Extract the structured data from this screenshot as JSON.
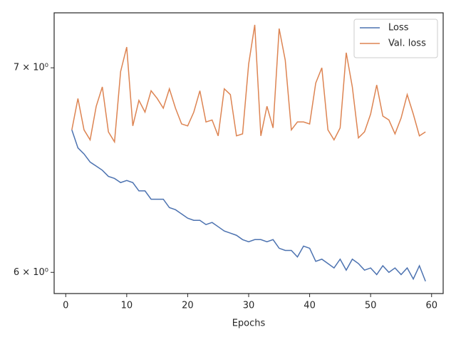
{
  "chart_data": {
    "type": "line",
    "xlabel": "Epochs",
    "x": [
      1,
      2,
      3,
      4,
      5,
      6,
      7,
      8,
      9,
      10,
      11,
      12,
      13,
      14,
      15,
      16,
      17,
      18,
      19,
      20,
      21,
      22,
      23,
      24,
      25,
      26,
      27,
      28,
      29,
      30,
      31,
      32,
      33,
      34,
      35,
      36,
      37,
      38,
      39,
      40,
      41,
      42,
      43,
      44,
      45,
      46,
      47,
      48,
      49,
      50,
      51,
      52,
      53,
      54,
      55,
      56,
      57,
      58,
      59
    ],
    "series": [
      {
        "name": "Loss",
        "color": "#4c72b0",
        "values": [
          6.68,
          6.59,
          6.56,
          6.52,
          6.5,
          6.48,
          6.45,
          6.44,
          6.42,
          6.43,
          6.42,
          6.38,
          6.38,
          6.34,
          6.34,
          6.34,
          6.3,
          6.29,
          6.27,
          6.25,
          6.24,
          6.24,
          6.22,
          6.23,
          6.21,
          6.19,
          6.18,
          6.17,
          6.15,
          6.14,
          6.15,
          6.15,
          6.14,
          6.15,
          6.11,
          6.1,
          6.1,
          6.07,
          6.12,
          6.11,
          6.05,
          6.06,
          6.04,
          6.02,
          6.06,
          6.01,
          6.06,
          6.04,
          6.01,
          6.02,
          5.99,
          6.03,
          6.0,
          6.02,
          5.99,
          6.02,
          5.97,
          6.03,
          5.96
        ]
      },
      {
        "name": "Val. loss",
        "color": "#dd8452",
        "values": [
          6.68,
          6.84,
          6.68,
          6.63,
          6.8,
          6.9,
          6.67,
          6.62,
          6.98,
          7.11,
          6.7,
          6.83,
          6.77,
          6.88,
          6.84,
          6.79,
          6.89,
          6.79,
          6.71,
          6.7,
          6.77,
          6.88,
          6.72,
          6.73,
          6.65,
          6.89,
          6.86,
          6.65,
          6.66,
          7.02,
          7.23,
          6.65,
          6.8,
          6.69,
          7.21,
          7.04,
          6.68,
          6.72,
          6.72,
          6.71,
          6.92,
          7.0,
          6.68,
          6.63,
          6.69,
          7.08,
          6.9,
          6.64,
          6.67,
          6.76,
          6.91,
          6.75,
          6.73,
          6.66,
          6.74,
          6.86,
          6.76,
          6.65,
          6.67
        ]
      }
    ],
    "xlim": [
      -1.9,
      61.9
    ],
    "xticks": [
      0,
      10,
      20,
      30,
      40,
      50,
      60
    ],
    "ylim": [
      5.905,
      7.296
    ],
    "yscale": "log",
    "yticks": [
      {
        "value": 6,
        "label": "6 × 10⁰"
      },
      {
        "value": 7,
        "label": "7 × 10⁰"
      }
    ],
    "legend": "upper right"
  }
}
